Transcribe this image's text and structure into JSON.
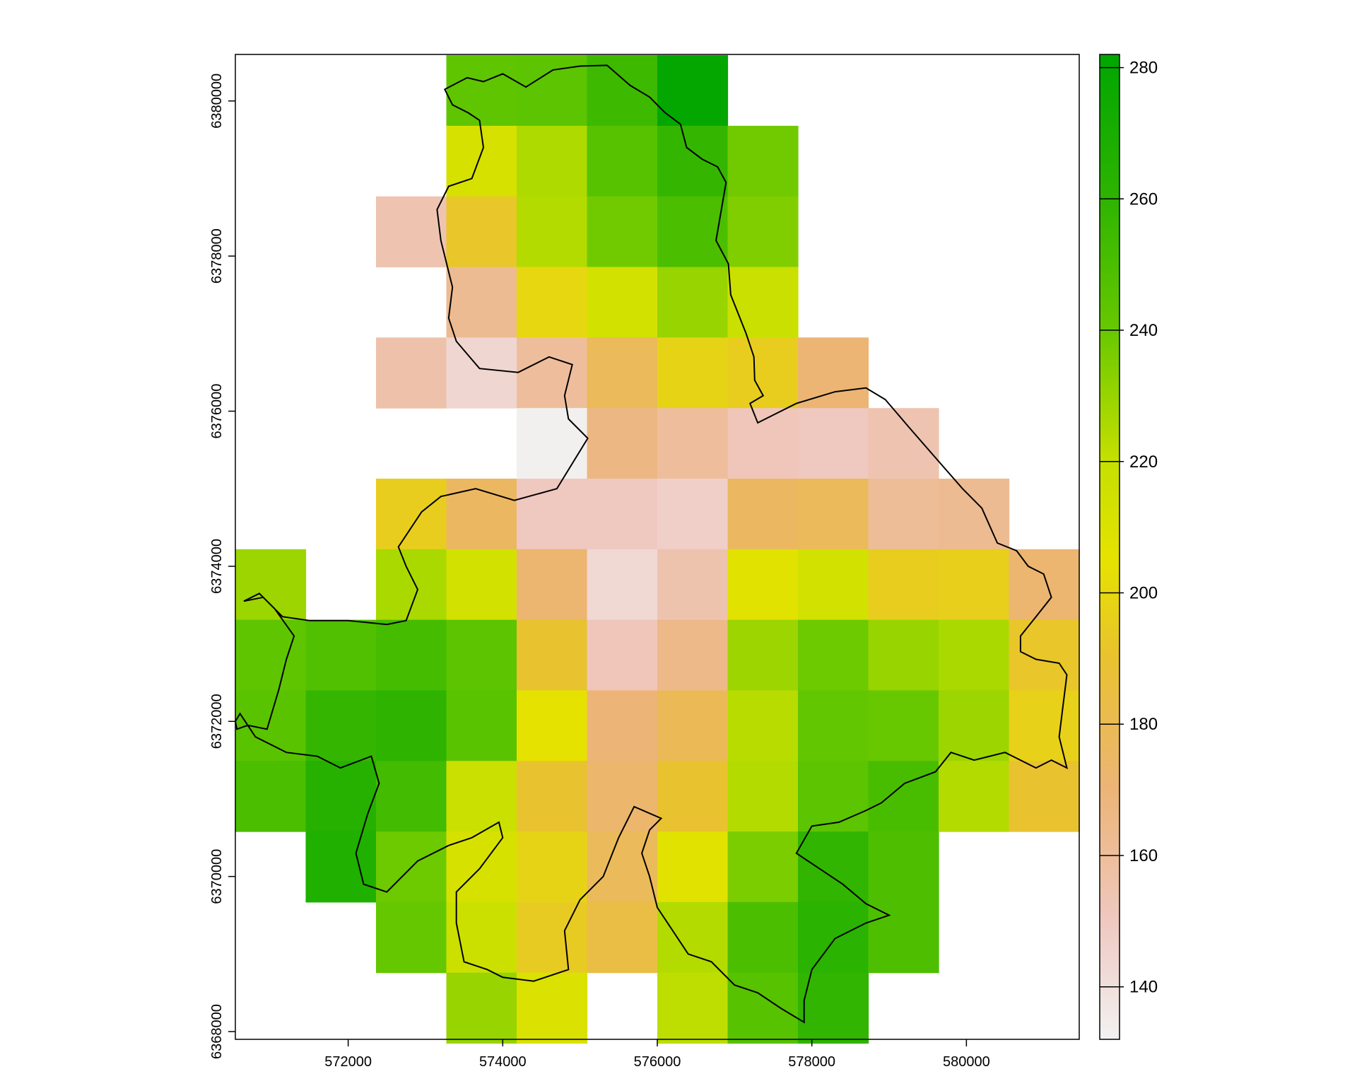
{
  "chart_data": {
    "type": "heatmap",
    "title": "",
    "xlabel": "",
    "ylabel": "",
    "x_ticks": [
      572000,
      574000,
      576000,
      578000,
      580000
    ],
    "y_ticks": [
      6368000,
      6370000,
      6372000,
      6374000,
      6376000,
      6378000,
      6380000
    ],
    "xlim": [
      570540,
      581460
    ],
    "ylim": [
      6367900,
      6380600
    ],
    "cell_size": 910,
    "grid_origin": {
      "x": 570540,
      "y": 6380590
    },
    "color_scale": {
      "min": 132,
      "max": 282,
      "ticks": [
        140,
        160,
        180,
        200,
        220,
        240,
        260,
        280
      ],
      "stops": [
        {
          "value": 132,
          "color": "#f2f2f2"
        },
        {
          "value": 150,
          "color": "#efc8c0"
        },
        {
          "value": 170,
          "color": "#ecb477"
        },
        {
          "value": 190,
          "color": "#e9c22f"
        },
        {
          "value": 205,
          "color": "#e6e200"
        },
        {
          "value": 220,
          "color": "#c6e000"
        },
        {
          "value": 240,
          "color": "#68c800"
        },
        {
          "value": 260,
          "color": "#2eb400"
        },
        {
          "value": 282,
          "color": "#00a600"
        }
      ]
    },
    "legend_position": "right",
    "grid": false,
    "cells": [
      [
        null,
        null,
        null,
        243,
        244,
        255,
        280,
        null,
        null,
        null,
        null,
        null
      ],
      [
        null,
        null,
        null,
        212,
        225,
        246,
        258,
        238,
        null,
        null,
        null,
        null
      ],
      [
        null,
        null,
        154,
        192,
        224,
        238,
        250,
        235,
        null,
        null,
        null,
        null
      ],
      [
        null,
        null,
        null,
        163,
        200,
        214,
        230,
        218,
        null,
        null,
        null,
        null
      ],
      [
        null,
        null,
        156,
        144,
        160,
        178,
        198,
        195,
        171,
        null,
        null,
        null
      ],
      [
        null,
        null,
        null,
        null,
        133,
        167,
        160,
        152,
        150,
        154,
        null,
        null
      ],
      [
        null,
        null,
        195,
        176,
        150,
        150,
        147,
        176,
        178,
        161,
        163,
        null
      ],
      [
        229,
        null,
        226,
        214,
        172,
        143,
        155,
        207,
        214,
        195,
        196,
        172
      ],
      [
        243,
        248,
        252,
        244,
        190,
        152,
        165,
        229,
        239,
        230,
        226,
        192
      ],
      [
        245,
        258,
        260,
        245,
        205,
        170,
        179,
        223,
        242,
        240,
        229,
        197
      ],
      [
        250,
        264,
        253,
        218,
        190,
        173,
        190,
        224,
        244,
        251,
        224,
        190
      ],
      [
        null,
        267,
        239,
        212,
        198,
        178,
        207,
        236,
        259,
        249,
        null,
        null
      ],
      [
        null,
        null,
        241,
        217,
        194,
        184,
        224,
        250,
        262,
        249,
        null,
        null
      ],
      [
        null,
        null,
        null,
        230,
        210,
        null,
        222,
        246,
        259,
        null,
        null,
        null
      ]
    ],
    "boundary": [
      [
        573250,
        6380150
      ],
      [
        573540,
        6380300
      ],
      [
        573750,
        6380250
      ],
      [
        574000,
        6380350
      ],
      [
        574300,
        6380180
      ],
      [
        574650,
        6380400
      ],
      [
        575000,
        6380450
      ],
      [
        575350,
        6380460
      ],
      [
        575650,
        6380200
      ],
      [
        575900,
        6380050
      ],
      [
        576100,
        6379850
      ],
      [
        576300,
        6379700
      ],
      [
        576380,
        6379400
      ],
      [
        576580,
        6379250
      ],
      [
        576780,
        6379150
      ],
      [
        576890,
        6378950
      ],
      [
        576820,
        6378550
      ],
      [
        576760,
        6378200
      ],
      [
        576920,
        6377900
      ],
      [
        576950,
        6377500
      ],
      [
        577050,
        6377250
      ],
      [
        577150,
        6377000
      ],
      [
        577250,
        6376700
      ],
      [
        577260,
        6376400
      ],
      [
        577370,
        6376200
      ],
      [
        577200,
        6376100
      ],
      [
        577300,
        6375850
      ],
      [
        577500,
        6375950
      ],
      [
        577800,
        6376100
      ],
      [
        578300,
        6376250
      ],
      [
        578700,
        6376300
      ],
      [
        578950,
        6376150
      ],
      [
        579250,
        6375800
      ],
      [
        579600,
        6375400
      ],
      [
        579950,
        6375000
      ],
      [
        580200,
        6374750
      ],
      [
        580400,
        6374300
      ],
      [
        580650,
        6374200
      ],
      [
        580800,
        6374000
      ],
      [
        581000,
        6373900
      ],
      [
        581100,
        6373600
      ],
      [
        580900,
        6373350
      ],
      [
        580700,
        6373100
      ],
      [
        580700,
        6372900
      ],
      [
        580900,
        6372800
      ],
      [
        581200,
        6372750
      ],
      [
        581300,
        6372600
      ],
      [
        581250,
        6372200
      ],
      [
        581200,
        6371800
      ],
      [
        581300,
        6371400
      ],
      [
        581100,
        6371500
      ],
      [
        580900,
        6371400
      ],
      [
        580500,
        6371600
      ],
      [
        580100,
        6371500
      ],
      [
        579800,
        6371600
      ],
      [
        579600,
        6371350
      ],
      [
        579200,
        6371200
      ],
      [
        578900,
        6370950
      ],
      [
        578700,
        6370850
      ],
      [
        578350,
        6370700
      ],
      [
        578000,
        6370650
      ],
      [
        577800,
        6370300
      ],
      [
        578100,
        6370100
      ],
      [
        578400,
        6369900
      ],
      [
        578700,
        6369650
      ],
      [
        579000,
        6369500
      ],
      [
        578700,
        6369400
      ],
      [
        578300,
        6369200
      ],
      [
        578000,
        6368800
      ],
      [
        577900,
        6368400
      ],
      [
        577900,
        6368120
      ],
      [
        577600,
        6368300
      ],
      [
        577300,
        6368500
      ],
      [
        577000,
        6368600
      ],
      [
        576700,
        6368900
      ],
      [
        576400,
        6369000
      ],
      [
        576200,
        6369300
      ],
      [
        576000,
        6369600
      ],
      [
        575900,
        6370000
      ],
      [
        575800,
        6370300
      ],
      [
        575900,
        6370600
      ],
      [
        576050,
        6370750
      ],
      [
        575700,
        6370900
      ],
      [
        575500,
        6370500
      ],
      [
        575300,
        6370000
      ],
      [
        575000,
        6369700
      ],
      [
        574800,
        6369300
      ],
      [
        574850,
        6368800
      ],
      [
        574400,
        6368650
      ],
      [
        574000,
        6368700
      ],
      [
        573800,
        6368800
      ],
      [
        573500,
        6368900
      ],
      [
        573400,
        6369400
      ],
      [
        573400,
        6369800
      ],
      [
        573700,
        6370100
      ],
      [
        574000,
        6370500
      ],
      [
        573950,
        6370700
      ],
      [
        573600,
        6370500
      ],
      [
        573300,
        6370400
      ],
      [
        572900,
        6370200
      ],
      [
        572500,
        6369800
      ],
      [
        572200,
        6369900
      ],
      [
        572100,
        6370300
      ],
      [
        572250,
        6370800
      ],
      [
        572400,
        6371200
      ],
      [
        572300,
        6371550
      ],
      [
        571900,
        6371400
      ],
      [
        571600,
        6371550
      ],
      [
        571200,
        6371600
      ],
      [
        570800,
        6371800
      ],
      [
        570600,
        6372100
      ],
      [
        570540,
        6372000
      ],
      [
        570560,
        6371900
      ],
      [
        570700,
        6371950
      ],
      [
        570950,
        6371900
      ],
      [
        571100,
        6372400
      ],
      [
        571200,
        6372800
      ],
      [
        571300,
        6373100
      ],
      [
        571050,
        6373450
      ],
      [
        570850,
        6373650
      ],
      [
        570650,
        6373550
      ],
      [
        570900,
        6373600
      ],
      [
        571150,
        6373350
      ],
      [
        571500,
        6373300
      ],
      [
        572000,
        6373300
      ],
      [
        572500,
        6373250
      ],
      [
        572750,
        6373300
      ],
      [
        572900,
        6373700
      ],
      [
        572750,
        6374000
      ],
      [
        572650,
        6374250
      ],
      [
        572950,
        6374700
      ],
      [
        573200,
        6374900
      ],
      [
        573650,
        6375000
      ],
      [
        574150,
        6374850
      ],
      [
        574700,
        6375000
      ],
      [
        575100,
        6375650
      ],
      [
        574850,
        6375900
      ],
      [
        574800,
        6376200
      ],
      [
        574900,
        6376600
      ],
      [
        574600,
        6376700
      ],
      [
        574200,
        6376500
      ],
      [
        573700,
        6376550
      ],
      [
        573400,
        6376900
      ],
      [
        573300,
        6377200
      ],
      [
        573350,
        6377600
      ],
      [
        573200,
        6378200
      ],
      [
        573150,
        6378600
      ],
      [
        573300,
        6378900
      ],
      [
        573600,
        6379000
      ],
      [
        573750,
        6379400
      ],
      [
        573700,
        6379750
      ],
      [
        573550,
        6379850
      ],
      [
        573350,
        6379950
      ],
      [
        573250,
        6380150
      ]
    ]
  }
}
